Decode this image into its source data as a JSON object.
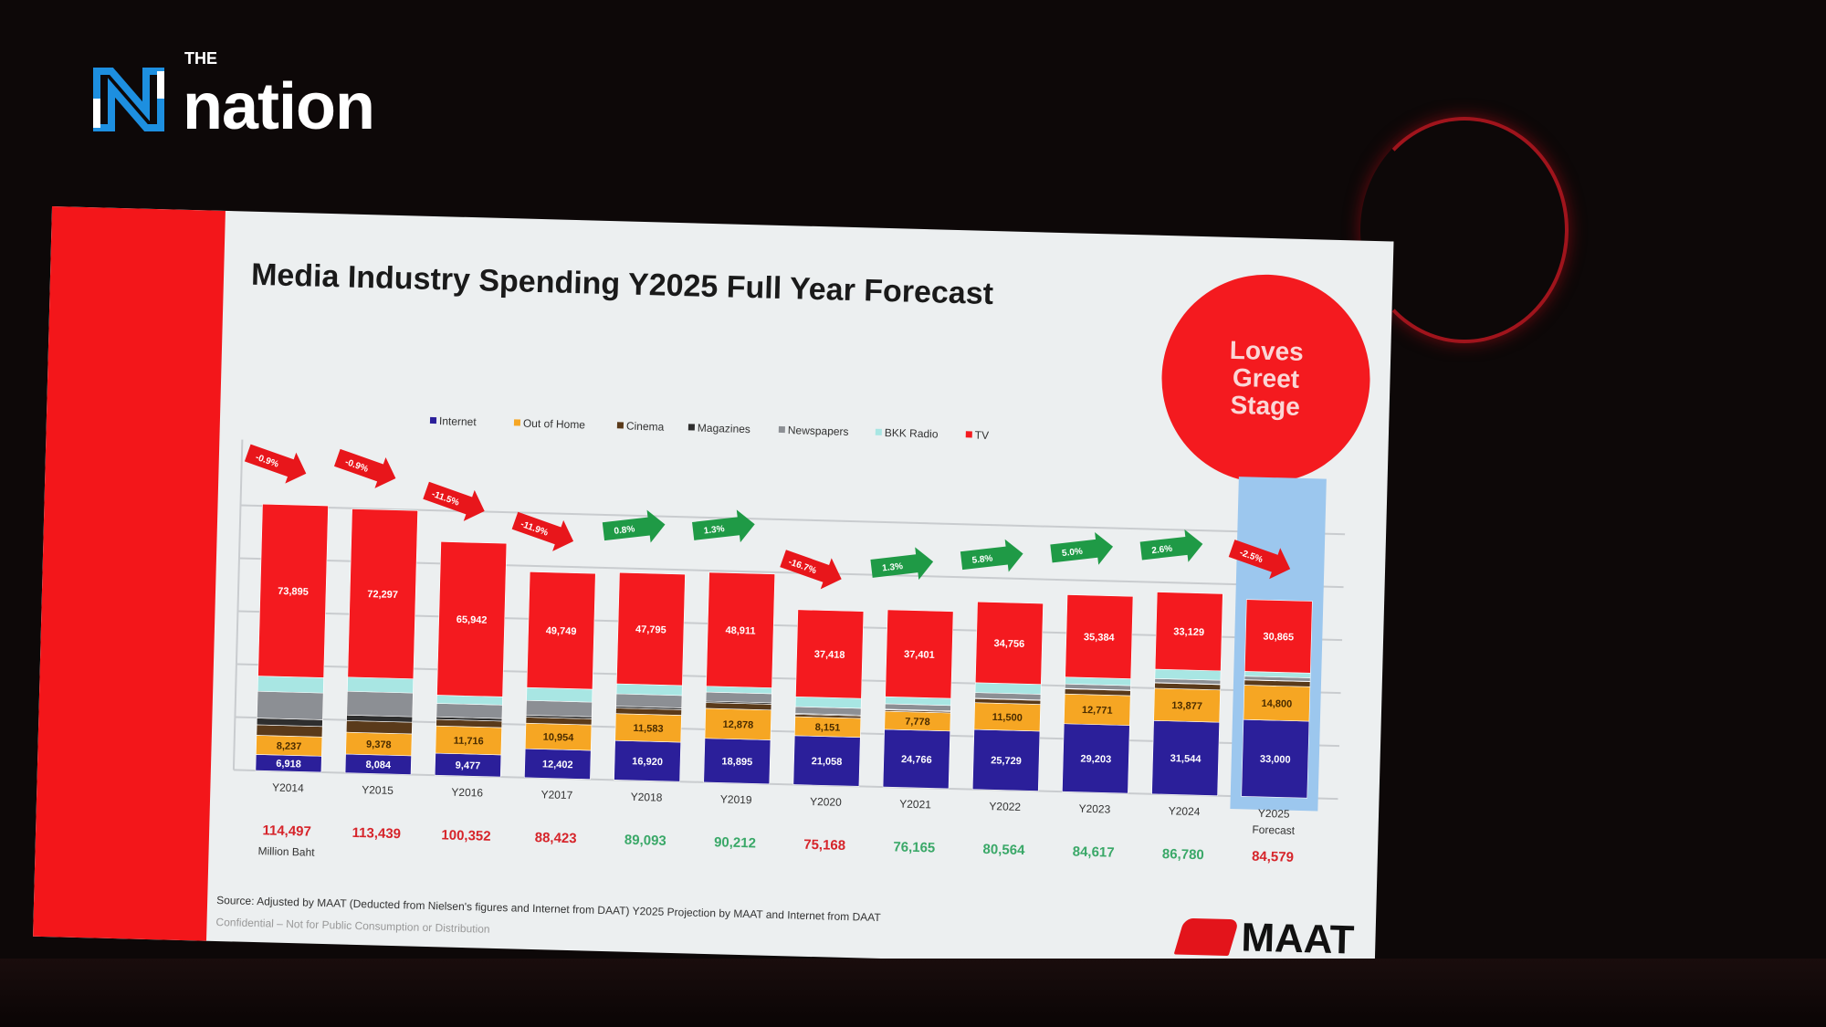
{
  "brand": {
    "the": "THE",
    "name": "nation"
  },
  "slide": {
    "title": "Media Industry Spending Y2025 Full Year Forecast",
    "badge_text": "Loves Greet Stage",
    "source": "Source: Adjusted by MAAT (Deducted from Nielsen's figures and Internet from DAAT) Y2025 Projection by MAAT and Internet from DAAT",
    "confidential": "Confidential – Not for Public Consumption or Distribution",
    "maat_logo": "MAAT"
  },
  "chart_data": {
    "type": "bar",
    "stacked": true,
    "title": "Media Industry Spending Y2025 Full Year Forecast",
    "unit_label": "Million Baht",
    "legend_position": "top",
    "categories": [
      "Y2014",
      "Y2015",
      "Y2016",
      "Y2017",
      "Y2018",
      "Y2019",
      "Y2020",
      "Y2021",
      "Y2022",
      "Y2023",
      "Y2024",
      "Y2025 Forecast"
    ],
    "series": [
      {
        "name": "Internet",
        "color": "#2b1f9a",
        "values": [
          6918,
          8084,
          9477,
          12402,
          16920,
          18895,
          21058,
          24766,
          25729,
          29203,
          31544,
          33000
        ]
      },
      {
        "name": "Out of Home",
        "color": "#f6a623",
        "values": [
          8237,
          9378,
          11716,
          10954,
          11583,
          12878,
          8151,
          7778,
          11500,
          12771,
          13877,
          14800
        ]
      },
      {
        "name": "Cinema",
        "color": "#5a3a1a",
        "values": [
          4500,
          5000,
          2800,
          2600,
          2400,
          2500,
          1000,
          600,
          1700,
          2200,
          2300,
          2200
        ]
      },
      {
        "name": "Magazines",
        "color": "#2e2e2e",
        "values": [
          2900,
          2400,
          1100,
          900,
          800,
          600,
          400,
          300,
          250,
          200,
          180,
          150
        ]
      },
      {
        "name": "Newspapers",
        "color": "#8c8f94",
        "values": [
          11500,
          10200,
          5800,
          6300,
          5300,
          3900,
          2900,
          2300,
          2400,
          1900,
          1700,
          1500
        ]
      },
      {
        "name": "BKK Radio",
        "color": "#a8e6e3",
        "values": [
          6547,
          6080,
          3517,
          5518,
          4295,
          2528,
          4241,
          3020,
          4229,
          2959,
          4050,
          2064
        ]
      },
      {
        "name": "TV",
        "color": "#f41a1f",
        "values": [
          73895,
          72297,
          65942,
          49749,
          47795,
          48911,
          37418,
          37401,
          34756,
          35384,
          33129,
          30865
        ]
      }
    ],
    "labeled_series": [
      "Internet",
      "Out of Home",
      "TV"
    ],
    "totals": [
      114497,
      113439,
      100352,
      88423,
      89093,
      90212,
      75168,
      76165,
      80564,
      84617,
      86780,
      84579
    ],
    "growth_labels": [
      "-0.9%",
      "-0.9%",
      "-11.5%",
      "-11.9%",
      "0.8%",
      "1.3%",
      "-16.7%",
      "1.3%",
      "5.8%",
      "5.0%",
      "2.6%",
      "-2.5%"
    ],
    "highlight_category": "Y2025 Forecast",
    "colors": {
      "decline": "#e8161b",
      "growth": "#1f9a46",
      "highlight": "#9cc7ee"
    }
  }
}
